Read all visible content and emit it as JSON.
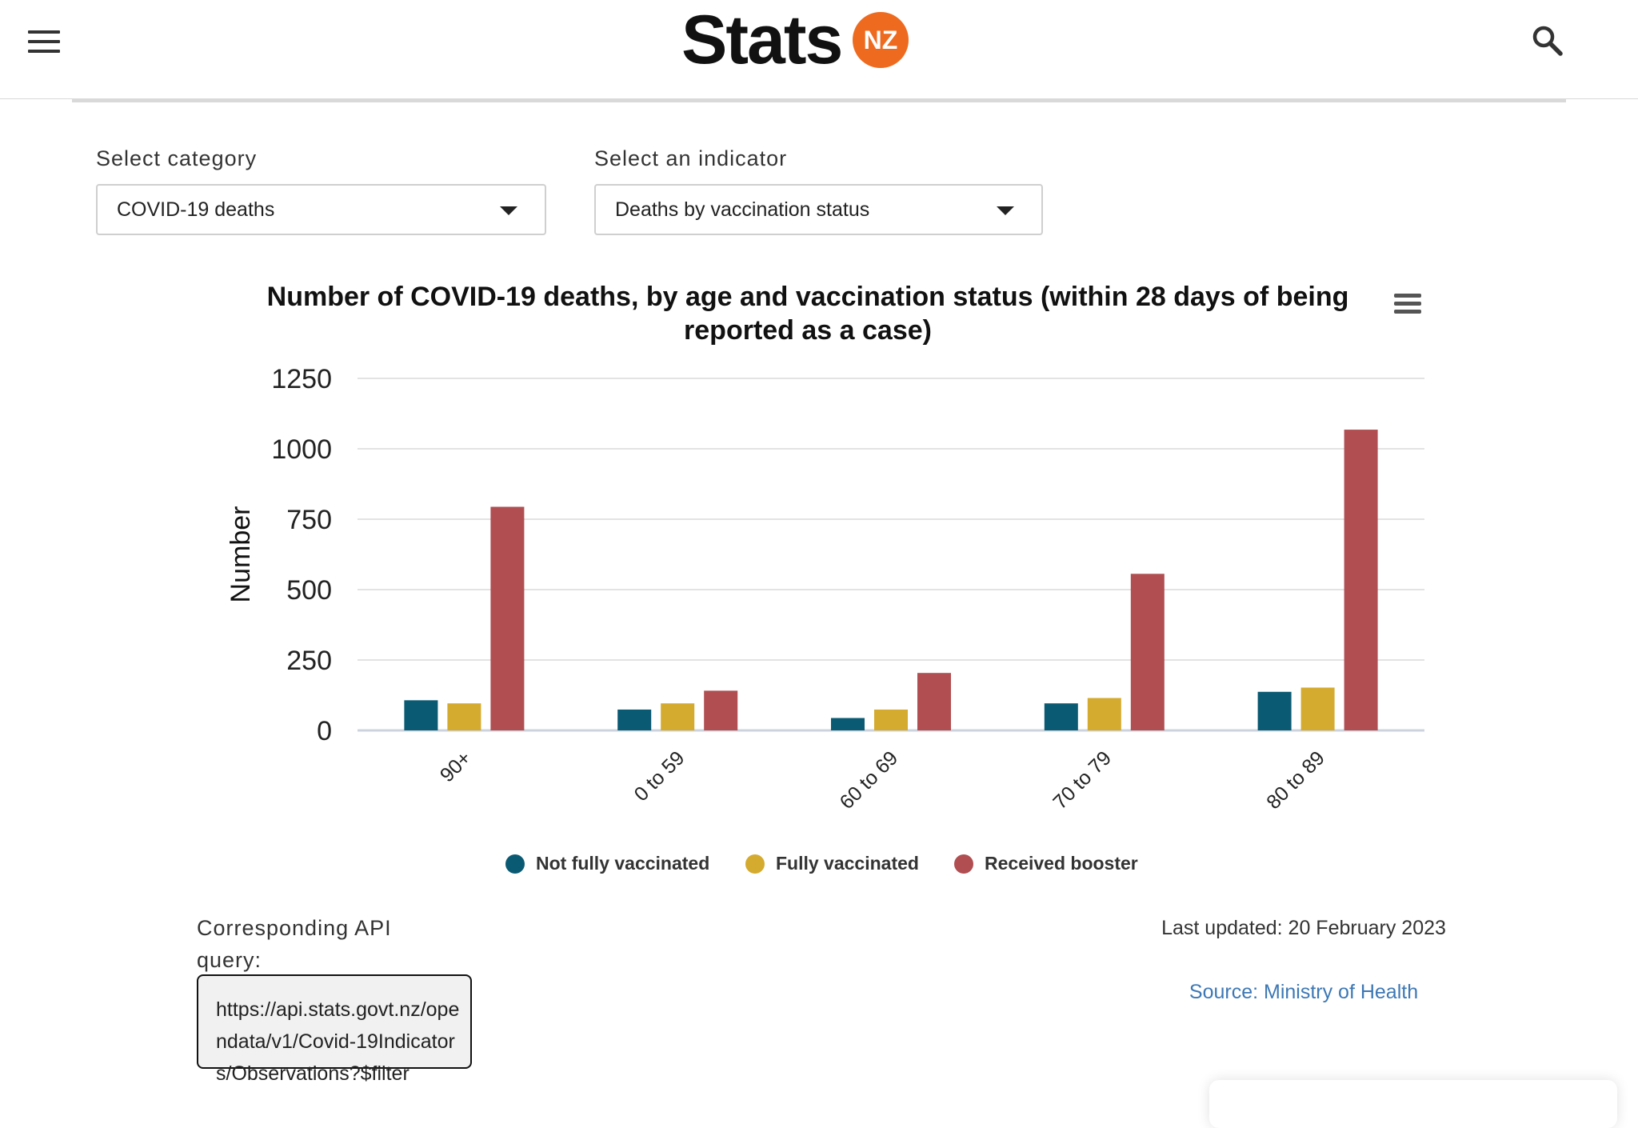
{
  "header": {
    "logo_text": "Stats",
    "logo_badge": "NZ",
    "menu_icon": "hamburger-icon",
    "search_icon": "search-icon"
  },
  "filters": {
    "category": {
      "label": "Select category",
      "value": "COVID-19 deaths"
    },
    "indicator": {
      "label": "Select an indicator",
      "value": "Deaths by vaccination status"
    }
  },
  "chart_data": {
    "type": "bar",
    "title": "Number of COVID-19 deaths, by age and vaccination status (within 28 days of being reported as a case)",
    "xlabel": "",
    "ylabel": "Number",
    "ylim": [
      0,
      1250
    ],
    "yticks": [
      "0",
      "250",
      "500",
      "750",
      "1000",
      "1250"
    ],
    "categories": [
      "90+",
      "0 to 59",
      "60 to 69",
      "70 to 79",
      "80 to 89"
    ],
    "series": [
      {
        "name": "Not fully vaccinated",
        "color": "#0b5a73",
        "values": [
          107,
          74,
          44,
          96,
          137
        ]
      },
      {
        "name": "Fully vaccinated",
        "color": "#d4ab2e",
        "values": [
          96,
          96,
          74,
          115,
          152
        ]
      },
      {
        "name": "Received booster",
        "color": "#b04e51",
        "values": [
          794,
          141,
          204,
          556,
          1068
        ]
      }
    ],
    "grid": true,
    "legend": "bottom"
  },
  "footer": {
    "api_label": "Corresponding API query:",
    "api_query": "https://api.stats.govt.nz/opendata/v1/Covid-19Indicators/Observations?$filter",
    "last_updated": "Last updated: 20 February 2023",
    "source": "Source: Ministry of Health"
  }
}
